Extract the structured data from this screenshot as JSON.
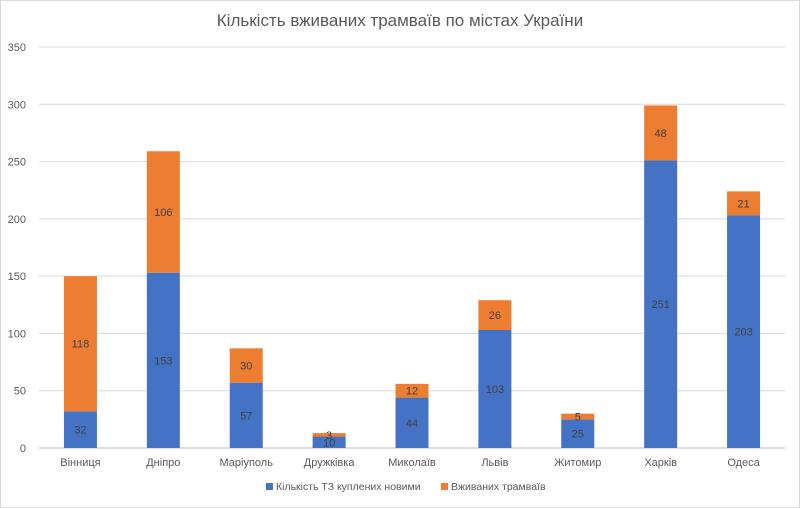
{
  "chart_data": {
    "type": "bar",
    "stacked": true,
    "title": "Кількість вживаних трамваїв по містах України",
    "xlabel": "",
    "ylabel": "",
    "ylim": [
      0,
      350
    ],
    "yticks": [
      "0",
      "50",
      "100",
      "150",
      "200",
      "250",
      "300",
      "350"
    ],
    "grid": true,
    "legend_position": "bottom",
    "categories": [
      "Вінниця",
      "Дніпро",
      "Маріуполь",
      "Дружківка",
      "Миколаїв",
      "Львів",
      "Житомир",
      "Харків",
      "Одеса"
    ],
    "series": [
      {
        "name": "Кількість ТЗ куплених новими",
        "color": "#4472C4",
        "values": [
          32,
          153,
          57,
          10,
          44,
          103,
          25,
          251,
          203
        ]
      },
      {
        "name": "Вживаних трамваїв",
        "color": "#ED7D31",
        "values": [
          118,
          106,
          30,
          3,
          12,
          26,
          5,
          48,
          21
        ]
      }
    ]
  }
}
